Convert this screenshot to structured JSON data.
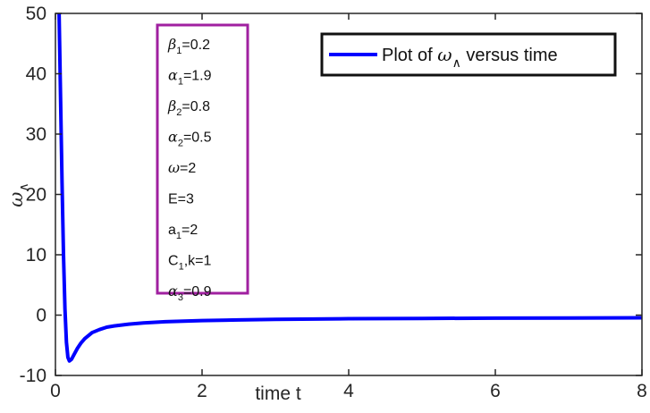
{
  "chart_data": {
    "type": "line",
    "title": "",
    "xlabel": "time t",
    "ylabel": "ω∧",
    "ylabel_main": "ω",
    "ylabel_sub": "∧",
    "xlim": [
      0,
      8
    ],
    "ylim": [
      -10,
      50
    ],
    "xticks": [
      0,
      2,
      4,
      6,
      8
    ],
    "xtick_labels": [
      "0",
      "2",
      "4",
      "6",
      "8"
    ],
    "yticks": [
      -10,
      0,
      10,
      20,
      30,
      40,
      50
    ],
    "ytick_labels": [
      "-10",
      "0",
      "10",
      "20",
      "30",
      "40",
      "50"
    ],
    "grid": false,
    "legend_position": "top-right",
    "legend": {
      "prefix": "Plot of ",
      "symbol": "ω",
      "subscript": "∧",
      "suffix": " versus time"
    },
    "series": [
      {
        "name": "Plot of ω∧ versus time",
        "color": "#0000ff",
        "x": [
          0.05,
          0.07,
          0.09,
          0.11,
          0.13,
          0.15,
          0.17,
          0.19,
          0.22,
          0.26,
          0.3,
          0.35,
          0.4,
          0.5,
          0.6,
          0.7,
          0.8,
          1.0,
          1.2,
          1.5,
          2.0,
          2.5,
          3.0,
          4.0,
          5.0,
          6.0,
          7.0,
          8.0
        ],
        "y": [
          50,
          36,
          22,
          10,
          1,
          -4.5,
          -7,
          -7.6,
          -7.3,
          -6.4,
          -5.5,
          -4.6,
          -3.9,
          -2.9,
          -2.4,
          -2.0,
          -1.8,
          -1.5,
          -1.3,
          -1.1,
          -0.9,
          -0.8,
          -0.7,
          -0.6,
          -0.55,
          -0.5,
          -0.48,
          -0.45
        ]
      }
    ],
    "annotation_box": {
      "border_color": "#a020a0",
      "lines": [
        {
          "sym": "β",
          "sub": "1",
          "rest": "=0.2"
        },
        {
          "sym": "α",
          "sub": "1",
          "rest": "=1.9"
        },
        {
          "sym": "β",
          "sub": "2",
          "rest": "=0.8"
        },
        {
          "sym": "α",
          "sub": "2",
          "rest": "=0.5"
        },
        {
          "sym": "ω",
          "sub": "",
          "rest": "=2"
        },
        {
          "sym": "E",
          "sub": "",
          "rest": "=3"
        },
        {
          "sym": "a",
          "sub": "1",
          "rest": "=2"
        },
        {
          "sym": "C",
          "sub": "1",
          "rest": ",k=1"
        },
        {
          "sym": "α",
          "sub": "3",
          "rest": "=0.9"
        }
      ]
    }
  }
}
